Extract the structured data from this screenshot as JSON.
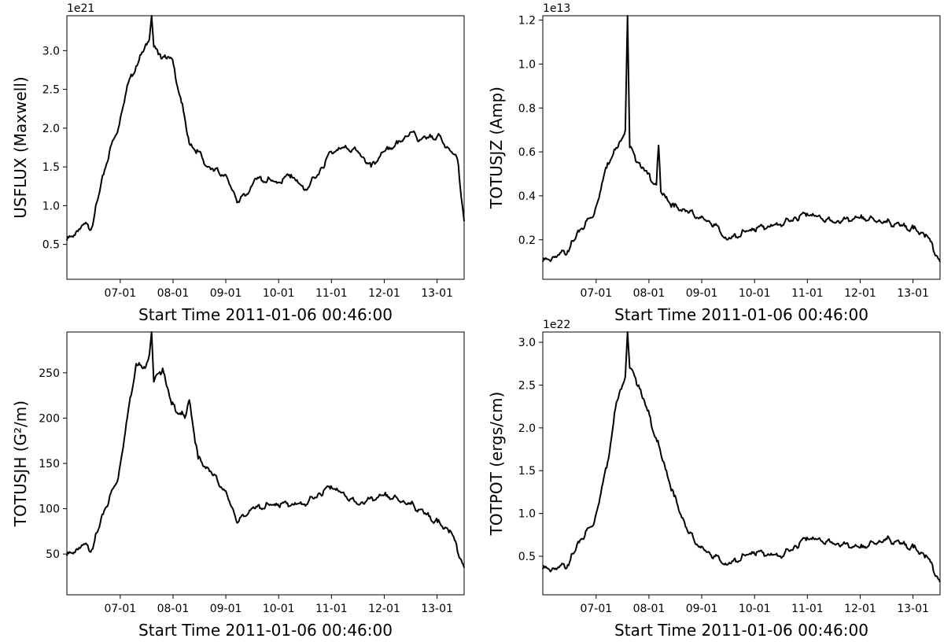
{
  "chart_data": [
    {
      "type": "line",
      "xlabel": "Start Time 2011-01-06 00:46:00",
      "ylabel": "USFLUX (Maxwell)",
      "exponent_label": "1e21",
      "x_range": [
        "2011-01-06 00:46",
        "2011-01-13 12:00"
      ],
      "x_tick_labels": [
        "07-01",
        "08-01",
        "09-01",
        "10-01",
        "11-01",
        "12-01",
        "13-01"
      ],
      "y_ticks": [
        0.5,
        1.0,
        1.5,
        2.0,
        2.5,
        3.0
      ],
      "y_tick_labels": [
        "0.5",
        "1.0",
        "1.5",
        "2.0",
        "2.5",
        "3.0"
      ],
      "ylim": [
        0.05,
        3.45
      ],
      "grid": false,
      "series": [
        {
          "x": [
            "2011-01-06 00:46",
            "2011-01-06 04:00",
            "2011-01-06 08:00",
            "2011-01-06 12:00",
            "2011-01-06 16:00",
            "2011-01-06 20:00",
            "2011-01-07 00:00",
            "2011-01-07 04:00",
            "2011-01-07 08:00",
            "2011-01-07 12:00",
            "2011-01-07 14:00",
            "2011-01-07 15:00",
            "2011-01-07 16:00",
            "2011-01-07 18:00",
            "2011-01-08 00:00",
            "2011-01-08 04:00",
            "2011-01-08 08:00",
            "2011-01-08 12:00",
            "2011-01-08 16:00",
            "2011-01-09 00:00",
            "2011-01-09 06:00",
            "2011-01-09 10:00",
            "2011-01-09 14:00",
            "2011-01-10 00:00",
            "2011-01-10 06:00",
            "2011-01-10 12:00",
            "2011-01-10 18:00",
            "2011-01-11 00:00",
            "2011-01-11 06:00",
            "2011-01-11 12:00",
            "2011-01-11 18:00",
            "2011-01-12 00:00",
            "2011-01-12 06:00",
            "2011-01-12 12:00",
            "2011-01-12 16:00",
            "2011-01-13 00:00",
            "2011-01-13 06:00",
            "2011-01-13 09:00",
            "2011-01-13 12:00"
          ],
          "y": [
            0.55,
            0.62,
            0.75,
            0.72,
            1.25,
            1.7,
            2.0,
            2.55,
            2.8,
            3.05,
            3.15,
            3.45,
            3.05,
            2.95,
            2.9,
            2.4,
            1.8,
            1.7,
            1.5,
            1.4,
            1.05,
            1.15,
            1.35,
            1.3,
            1.4,
            1.2,
            1.4,
            1.7,
            1.75,
            1.7,
            1.5,
            1.7,
            1.8,
            1.95,
            1.85,
            1.9,
            1.7,
            1.6,
            0.8
          ]
        }
      ]
    },
    {
      "type": "line",
      "xlabel": "Start Time 2011-01-06 00:46:00",
      "ylabel": "TOTUSJZ (Amp)",
      "exponent_label": "1e13",
      "x_range": [
        "2011-01-06 00:46",
        "2011-01-13 12:00"
      ],
      "x_tick_labels": [
        "07-01",
        "08-01",
        "09-01",
        "10-01",
        "11-01",
        "12-01",
        "13-01"
      ],
      "y_ticks": [
        0.2,
        0.4,
        0.6,
        0.8,
        1.0,
        1.2
      ],
      "y_tick_labels": [
        "0.2",
        "0.4",
        "0.6",
        "0.8",
        "1.0",
        "1.2"
      ],
      "ylim": [
        0.02,
        1.22
      ],
      "grid": false,
      "series": [
        {
          "x": [
            "2011-01-06 00:46",
            "2011-01-06 06:00",
            "2011-01-06 12:00",
            "2011-01-06 18:00",
            "2011-01-07 00:00",
            "2011-01-07 06:00",
            "2011-01-07 12:00",
            "2011-01-07 14:00",
            "2011-01-07 15:00",
            "2011-01-07 16:00",
            "2011-01-07 20:00",
            "2011-01-08 00:00",
            "2011-01-08 04:00",
            "2011-01-08 05:00",
            "2011-01-08 06:00",
            "2011-01-08 12:00",
            "2011-01-08 18:00",
            "2011-01-09 00:00",
            "2011-01-09 06:00",
            "2011-01-09 12:00",
            "2011-01-10 00:00",
            "2011-01-10 12:00",
            "2011-01-11 00:00",
            "2011-01-11 12:00",
            "2011-01-12 00:00",
            "2011-01-12 12:00",
            "2011-01-13 00:00",
            "2011-01-13 06:00",
            "2011-01-13 12:00"
          ],
          "y": [
            0.1,
            0.12,
            0.15,
            0.25,
            0.32,
            0.55,
            0.65,
            0.7,
            1.22,
            0.62,
            0.55,
            0.5,
            0.45,
            0.63,
            0.42,
            0.35,
            0.33,
            0.3,
            0.27,
            0.2,
            0.25,
            0.27,
            0.32,
            0.28,
            0.3,
            0.28,
            0.25,
            0.22,
            0.1
          ]
        }
      ]
    },
    {
      "type": "line",
      "xlabel": "Start Time 2011-01-06 00:46:00",
      "ylabel": "TOTUSJH (G²/m)",
      "exponent_label": "",
      "x_range": [
        "2011-01-06 00:46",
        "2011-01-13 12:00"
      ],
      "x_tick_labels": [
        "07-01",
        "08-01",
        "09-01",
        "10-01",
        "11-01",
        "12-01",
        "13-01"
      ],
      "y_ticks": [
        50,
        100,
        150,
        200,
        250
      ],
      "y_tick_labels": [
        "50",
        "100",
        "150",
        "200",
        "250"
      ],
      "ylim": [
        5,
        295
      ],
      "grid": false,
      "series": [
        {
          "x": [
            "2011-01-06 00:46",
            "2011-01-06 04:00",
            "2011-01-06 08:00",
            "2011-01-06 12:00",
            "2011-01-06 18:00",
            "2011-01-07 00:00",
            "2011-01-07 04:00",
            "2011-01-07 08:00",
            "2011-01-07 12:00",
            "2011-01-07 14:00",
            "2011-01-07 15:00",
            "2011-01-07 16:00",
            "2011-01-07 20:00",
            "2011-01-08 00:00",
            "2011-01-08 06:00",
            "2011-01-08 08:00",
            "2011-01-08 12:00",
            "2011-01-08 18:00",
            "2011-01-09 00:00",
            "2011-01-09 06:00",
            "2011-01-09 12:00",
            "2011-01-10 00:00",
            "2011-01-10 12:00",
            "2011-01-11 00:00",
            "2011-01-11 12:00",
            "2011-01-12 00:00",
            "2011-01-12 12:00",
            "2011-01-13 00:00",
            "2011-01-13 06:00",
            "2011-01-13 12:00"
          ],
          "y": [
            48,
            52,
            60,
            55,
            100,
            135,
            200,
            260,
            255,
            270,
            295,
            240,
            255,
            215,
            200,
            220,
            155,
            140,
            120,
            85,
            100,
            105,
            105,
            125,
            105,
            115,
            105,
            85,
            75,
            35
          ]
        }
      ]
    },
    {
      "type": "line",
      "xlabel": "Start Time 2011-01-06 00:46:00",
      "ylabel": "TOTPOT (ergs/cm)",
      "exponent_label": "1e22",
      "x_range": [
        "2011-01-06 00:46",
        "2011-01-13 12:00"
      ],
      "x_tick_labels": [
        "07-01",
        "08-01",
        "09-01",
        "10-01",
        "11-01",
        "12-01",
        "13-01"
      ],
      "y_ticks": [
        0.5,
        1.0,
        1.5,
        2.0,
        2.5,
        3.0
      ],
      "y_tick_labels": [
        "0.5",
        "1.0",
        "1.5",
        "2.0",
        "2.5",
        "3.0"
      ],
      "ylim": [
        0.05,
        3.12
      ],
      "grid": false,
      "series": [
        {
          "x": [
            "2011-01-06 00:46",
            "2011-01-06 06:00",
            "2011-01-06 12:00",
            "2011-01-06 18:00",
            "2011-01-07 00:00",
            "2011-01-07 06:00",
            "2011-01-07 10:00",
            "2011-01-07 14:00",
            "2011-01-07 15:00",
            "2011-01-07 16:00",
            "2011-01-07 20:00",
            "2011-01-08 00:00",
            "2011-01-08 06:00",
            "2011-01-08 12:00",
            "2011-01-08 18:00",
            "2011-01-09 00:00",
            "2011-01-09 06:00",
            "2011-01-09 12:00",
            "2011-01-10 00:00",
            "2011-01-10 12:00",
            "2011-01-10 18:00",
            "2011-01-11 00:00",
            "2011-01-11 12:00",
            "2011-01-12 00:00",
            "2011-01-12 12:00",
            "2011-01-13 00:00",
            "2011-01-13 06:00",
            "2011-01-13 12:00"
          ],
          "y": [
            0.35,
            0.35,
            0.4,
            0.7,
            0.9,
            1.6,
            2.3,
            2.6,
            3.12,
            2.7,
            2.5,
            2.2,
            1.7,
            1.2,
            0.8,
            0.6,
            0.5,
            0.4,
            0.55,
            0.5,
            0.6,
            0.72,
            0.65,
            0.6,
            0.7,
            0.6,
            0.5,
            0.2
          ]
        }
      ]
    }
  ]
}
